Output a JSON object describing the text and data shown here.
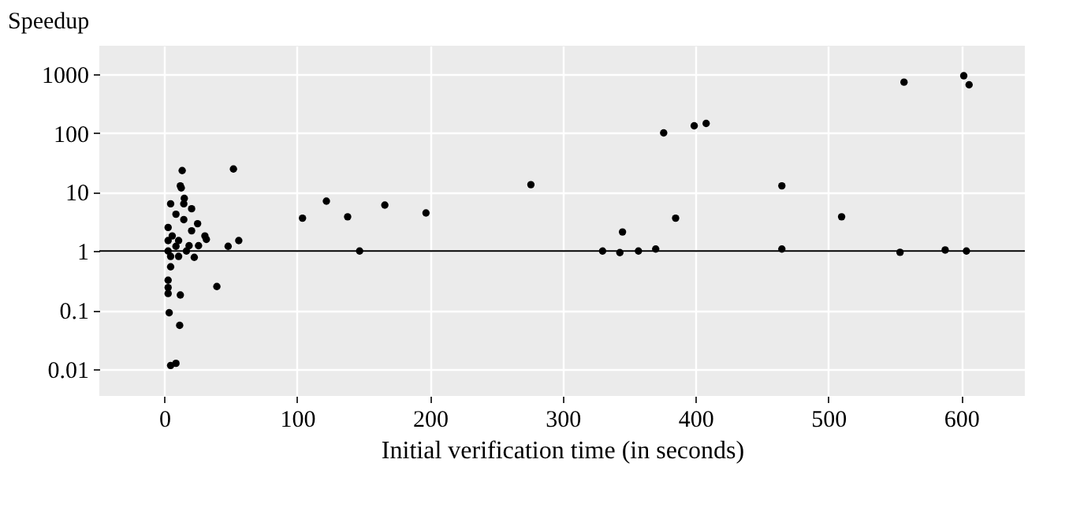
{
  "chart_data": {
    "type": "scatter",
    "title": "Speedup",
    "xlabel": "Initial verification time (in seconds)",
    "x": [
      104,
      122,
      138,
      147,
      166,
      197,
      276,
      56,
      52,
      330,
      343,
      345,
      357,
      370,
      376,
      385,
      399,
      408,
      465,
      465,
      510,
      554,
      557,
      588,
      604,
      602,
      606,
      48,
      39.5,
      22.5,
      25,
      30.5,
      31.6,
      25.7,
      20.5,
      12,
      11.5,
      3.6,
      8.7,
      4.7,
      13.4,
      12,
      12.7,
      15,
      4.7,
      8.7,
      2.8,
      2.8,
      2.8,
      2.8,
      4.7,
      4.7,
      10.7,
      16.6,
      18.6,
      20.5,
      14.6,
      2.8,
      5.9,
      10.7,
      2.8,
      8.7,
      14.6
    ],
    "series": [
      {
        "color": "#000000",
        "values": [
          3.6,
          7,
          3.8,
          1.0,
          6,
          4.4,
          13.3,
          1.5,
          24.5,
          1.0,
          0.94,
          2.1,
          1.0,
          1.08,
          100,
          3.6,
          132,
          145,
          12.7,
          1.08,
          3.8,
          0.95,
          725,
          1.04,
          1.0,
          930,
          655,
          1.2,
          0.25,
          0.78,
          2.9,
          1.8,
          1.57,
          1.23,
          2.2,
          0.18,
          0.055,
          0.09,
          0.0125,
          0.0115,
          23,
          12.7,
          11.7,
          7.8,
          6.3,
          4.2,
          2.5,
          0.24,
          0.32,
          0.19,
          0.54,
          0.81,
          0.81,
          1.0,
          1.23,
          5.2,
          3.4,
          1.5,
          1.8,
          1.5,
          1.0,
          1.2,
          6.3
        ]
      }
    ],
    "xlim": [
      -49,
      648
    ],
    "xticks": [
      0,
      100,
      200,
      300,
      400,
      500,
      600
    ],
    "ylim": [
      0.0035,
      3000
    ],
    "yticks": [
      0.01,
      0.1,
      1,
      10,
      100,
      1000
    ],
    "log": "y",
    "grid": true,
    "marker": "circle",
    "legend": false,
    "ref_lines": [
      {
        "axis": "y",
        "value": 1,
        "color": "#000000"
      }
    ]
  }
}
